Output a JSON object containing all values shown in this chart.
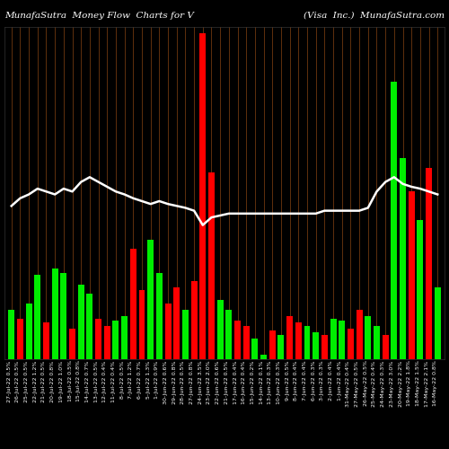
{
  "title_left": "MunafaSutra  Money Flow  Charts for V",
  "title_right": "(Visa  Inc.)  MunafaSutra.com",
  "background_color": "#000000",
  "bar_colors": [
    "#00ee00",
    "#ff0000",
    "#00ee00",
    "#00ee00",
    "#ff0000",
    "#00ee00",
    "#00ee00",
    "#ff0000",
    "#00ee00",
    "#00ee00",
    "#ff0000",
    "#ff0000",
    "#00ee00",
    "#00ee00",
    "#ff0000",
    "#ff0000",
    "#00ee00",
    "#00ee00",
    "#ff0000",
    "#ff0000",
    "#00ee00",
    "#ff0000",
    "#ff0000",
    "#ff0000",
    "#00ee00",
    "#00ee00",
    "#ff0000",
    "#ff0000",
    "#00ee00",
    "#00ee00",
    "#ff0000",
    "#00ee00",
    "#ff0000",
    "#ff0000",
    "#00ee00",
    "#00ee00",
    "#ff0000",
    "#00ee00",
    "#00ee00",
    "#ff0000",
    "#ff0000",
    "#00ee00",
    "#00ee00",
    "#ff0000",
    "#00ee00",
    "#00ee00",
    "#ff0000",
    "#00ee00",
    "#ff0000",
    "#00ee00"
  ],
  "bar_values": [
    52,
    42,
    58,
    88,
    38,
    95,
    90,
    32,
    78,
    68,
    42,
    35,
    40,
    45,
    115,
    72,
    125,
    90,
    58,
    75,
    52,
    82,
    340,
    195,
    62,
    52,
    40,
    35,
    22,
    5,
    30,
    25,
    45,
    38,
    35,
    28,
    25,
    42,
    40,
    32,
    52,
    45,
    35,
    25,
    290,
    210,
    175,
    145,
    200,
    75
  ],
  "grid_color": "#8B4513",
  "line_color": "#ffffff",
  "line_values": [
    160,
    168,
    172,
    178,
    175,
    172,
    178,
    175,
    185,
    190,
    185,
    180,
    175,
    172,
    168,
    165,
    162,
    165,
    162,
    160,
    158,
    155,
    140,
    148,
    150,
    152,
    152,
    152,
    152,
    152,
    152,
    152,
    152,
    152,
    152,
    152,
    155,
    155,
    155,
    155,
    155,
    158,
    175,
    185,
    190,
    183,
    180,
    178,
    175,
    172
  ],
  "xlabel_fontsize": 4.5,
  "title_fontsize": 7.5,
  "bar_width": 0.72,
  "xlabels": [
    "27-Jul-22 0.5%",
    "26-Jul-22 0.5%",
    "25-Jul-22 0.5%",
    "22-Jul-22 1.2%",
    "21-Jul-22 0.5%",
    "20-Jul-22 0.8%",
    "19-Jul-22 1.0%",
    "18-Jul-22 0.5%",
    "15-Jul-22 0.8%",
    "14-Jul-22 0.7%",
    "13-Jul-22 0.5%",
    "12-Jul-22 0.4%",
    "11-Jul-22 0.4%",
    "8-Jul-22 0.5%",
    "7-Jul-22 1.2%",
    "6-Jul-22 0.7%",
    "5-Jul-22 1.3%",
    "1-Jul-22 0.9%",
    "30-Jun-22 0.6%",
    "29-Jun-22 0.8%",
    "28-Jun-22 0.5%",
    "27-Jun-22 0.8%",
    "24-Jun-22 3.5%",
    "23-Jun-22 2.0%",
    "22-Jun-22 0.6%",
    "21-Jun-22 0.5%",
    "17-Jun-22 0.4%",
    "16-Jun-22 0.4%",
    "15-Jun-22 0.2%",
    "14-Jun-22 0.1%",
    "13-Jun-22 0.3%",
    "10-Jun-22 0.3%",
    "9-Jun-22 0.5%",
    "8-Jun-22 0.4%",
    "7-Jun-22 0.4%",
    "6-Jun-22 0.3%",
    "3-Jun-22 0.3%",
    "2-Jun-22 0.4%",
    "1-Jun-22 0.4%",
    "31-May-22 0.4%",
    "27-May-22 0.5%",
    "26-May-22 0.5%",
    "25-May-22 0.4%",
    "24-May-22 0.3%",
    "23-May-22 3.0%",
    "20-May-22 2.2%",
    "19-May-22 1.8%",
    "18-May-22 1.5%",
    "17-May-22 2.1%",
    "16-May-22 0.8%"
  ]
}
